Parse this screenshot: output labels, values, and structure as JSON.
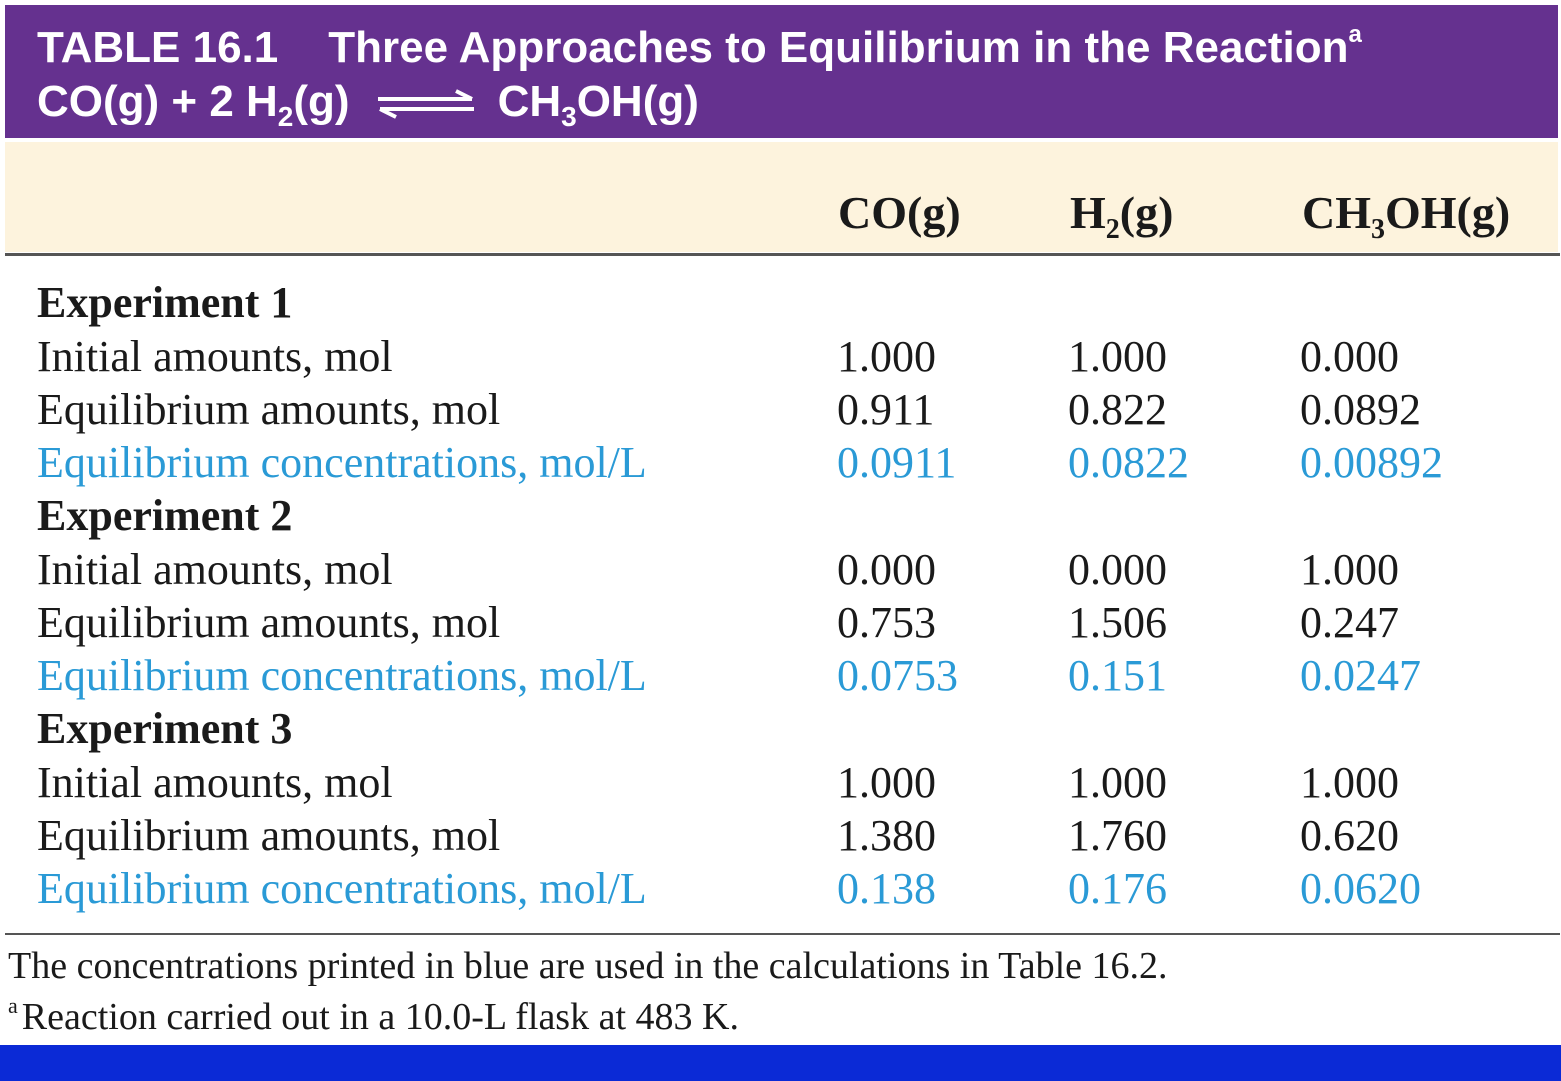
{
  "header": {
    "table_number": "TABLE 16.1",
    "title": "Three Approaches to Equilibrium in the Reaction",
    "title_footnote_mark": "a",
    "reaction_left": "CO(g)  +  2 H",
    "reaction_left_sub": "2",
    "reaction_left_end": "(g)",
    "reaction_right": "CH",
    "reaction_right_sub": "3",
    "reaction_right_end": "OH(g)"
  },
  "columns": [
    {
      "text": "CO(g)",
      "sub": "",
      "end": ""
    },
    {
      "text": "H",
      "sub": "2",
      "end": "(g)"
    },
    {
      "text": "CH",
      "sub": "3",
      "end": "OH(g)"
    }
  ],
  "experiments": [
    {
      "title": "Experiment 1",
      "rows": [
        {
          "label": "Initial amounts, mol",
          "values": [
            "1.000",
            "1.000",
            "0.000"
          ],
          "blue": false
        },
        {
          "label": "Equilibrium amounts, mol",
          "values": [
            "0.911",
            "0.822",
            "0.0892"
          ],
          "blue": false
        },
        {
          "label": "Equilibrium concentrations, mol/L",
          "values": [
            "0.0911",
            "0.0822",
            "0.00892"
          ],
          "blue": true
        }
      ]
    },
    {
      "title": "Experiment 2",
      "rows": [
        {
          "label": "Initial amounts, mol",
          "values": [
            "0.000",
            "0.000",
            "1.000"
          ],
          "blue": false
        },
        {
          "label": "Equilibrium amounts, mol",
          "values": [
            "0.753",
            "1.506",
            "0.247"
          ],
          "blue": false
        },
        {
          "label": "Equilibrium concentrations, mol/L",
          "values": [
            "0.0753",
            "0.151",
            "0.0247"
          ],
          "blue": true
        }
      ]
    },
    {
      "title": "Experiment 3",
      "rows": [
        {
          "label": "Initial amounts, mol",
          "values": [
            "1.000",
            "1.000",
            "1.000"
          ],
          "blue": false
        },
        {
          "label": "Equilibrium amounts, mol",
          "values": [
            "1.380",
            "1.760",
            "0.620"
          ],
          "blue": false
        },
        {
          "label": "Equilibrium concentrations, mol/L",
          "values": [
            "0.138",
            "0.176",
            "0.0620"
          ],
          "blue": true
        }
      ]
    }
  ],
  "footnotes": {
    "note": "The concentrations printed in blue are used in the calculations in Table 16.2.",
    "a_mark": "a",
    "a_text": "Reaction carried out in a 10.0-L flask at 483 K."
  },
  "colors": {
    "header_bg": "#65318f",
    "column_header_bg": "#fdf3dd",
    "highlight_text": "#2a9ad6",
    "bottom_bar": "#0b2ad6"
  }
}
